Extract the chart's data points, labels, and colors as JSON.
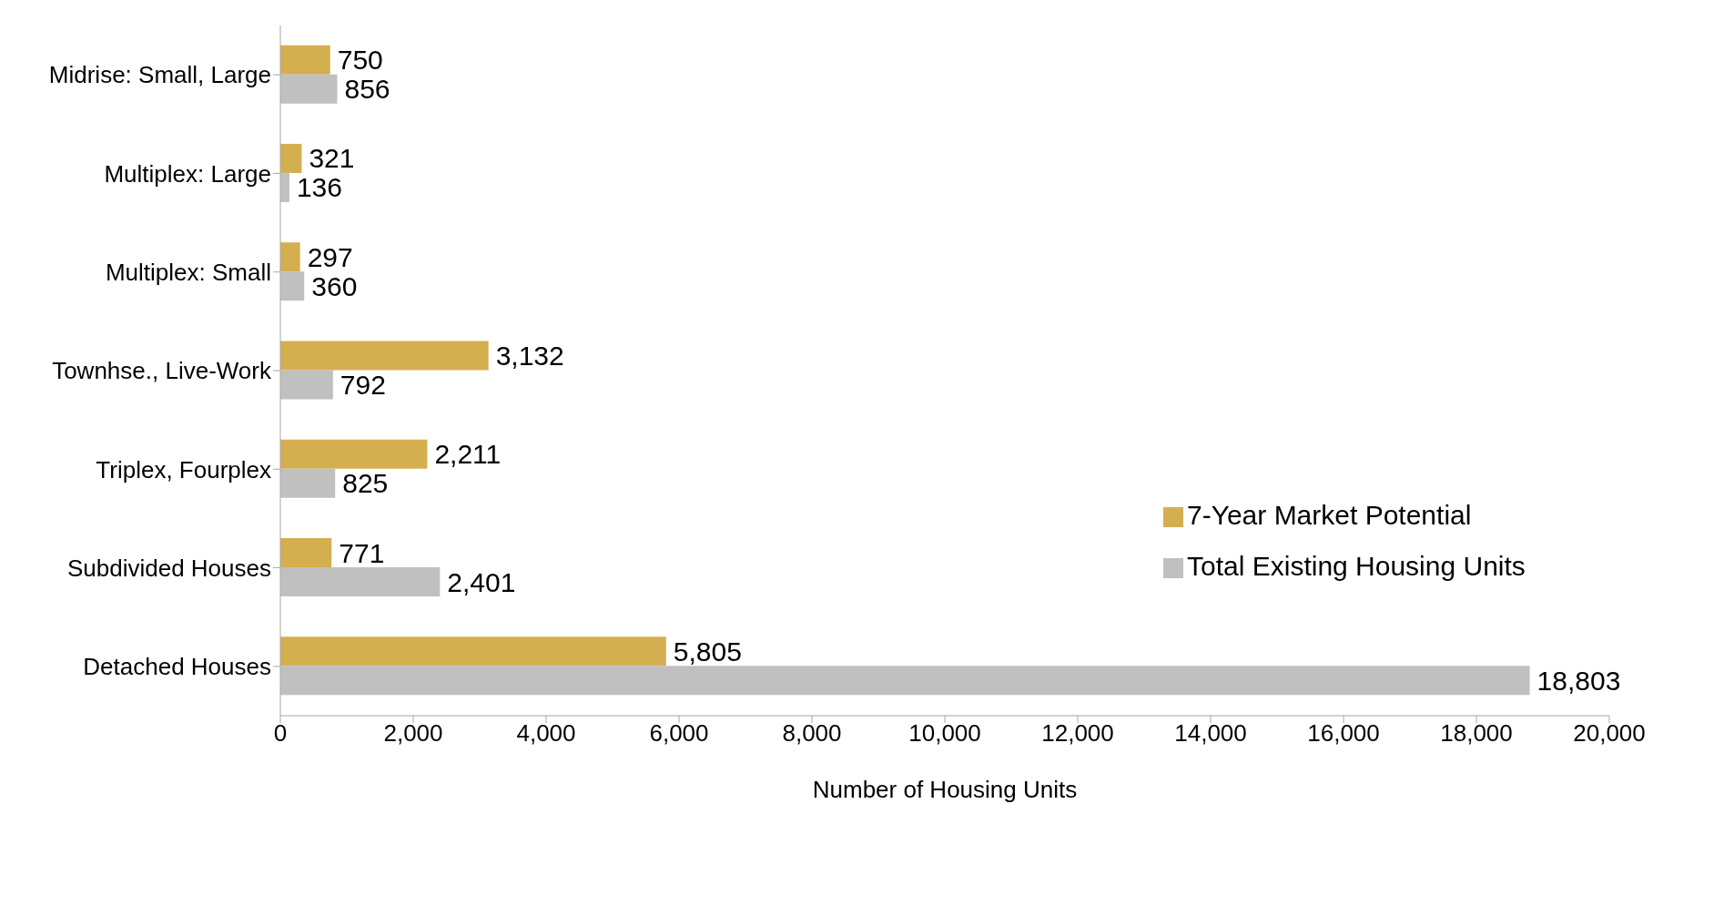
{
  "chart_data": {
    "type": "bar",
    "orientation": "horizontal",
    "xlabel": "Number of Housing Units",
    "categories": [
      "Midrise: Small, Large",
      "Multiplex: Large",
      "Multiplex: Small",
      "Townhse., Live-Work",
      "Triplex, Fourplex",
      "Subdivided Houses",
      "Detached Houses"
    ],
    "series": [
      {
        "name": "7-Year Market Potential",
        "color": "#d4af50",
        "values": [
          750,
          321,
          297,
          3132,
          2211,
          771,
          5805
        ],
        "value_labels": [
          "750",
          "321",
          "297",
          "3,132",
          "2,211",
          "771",
          "5,805"
        ]
      },
      {
        "name": "Total Existing Housing Units",
        "color": "#c0c0c0",
        "values": [
          856,
          136,
          360,
          792,
          825,
          2401,
          18803
        ],
        "value_labels": [
          "856",
          "136",
          "360",
          "792",
          "825",
          "2,401",
          "18,803"
        ]
      }
    ],
    "xlim": [
      0,
      20000
    ],
    "xticks": [
      0,
      {
        "value": 2000,
        "label": "2,000"
      },
      {
        "value": 4000,
        "label": "4,000"
      },
      {
        "value": 6000,
        "label": "6,000"
      },
      {
        "value": 8000,
        "label": "8,000"
      },
      {
        "value": 10000,
        "label": "10,000"
      },
      {
        "value": 12000,
        "label": "12,000"
      },
      {
        "value": 14000,
        "label": "14,000"
      },
      {
        "value": 16000,
        "label": "16,000"
      },
      {
        "value": 18000,
        "label": "18,000"
      },
      {
        "value": 20000,
        "label": "20,000"
      }
    ],
    "grid": false,
    "legend": "right"
  }
}
